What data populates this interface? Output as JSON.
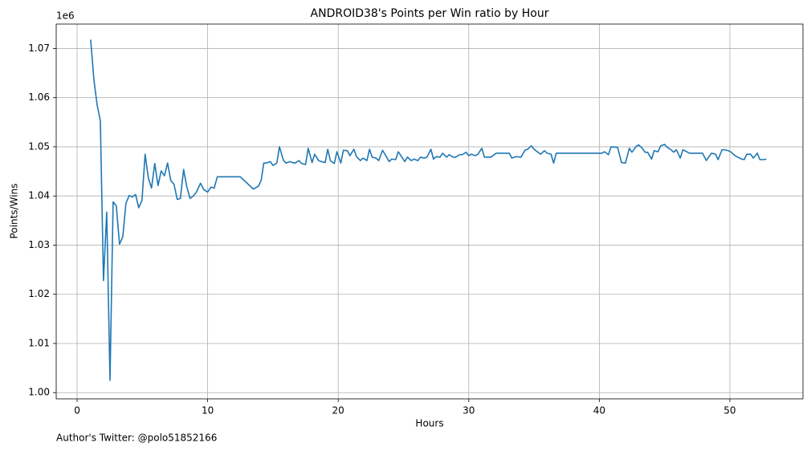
{
  "chart_data": {
    "type": "line",
    "title": "ANDROID38's Points per Win ratio by Hour",
    "x_label": "Hours",
    "y_label": "Points/Wins",
    "y_offset_label": "1e6",
    "footer": "Author's Twitter: @polo51852166",
    "color": "#1f77b4",
    "grid": true,
    "xlim": [
      -1.6,
      55.6
    ],
    "xticks": [
      0,
      10,
      20,
      30,
      40,
      50
    ],
    "ylim": [
      998730,
      1074970
    ],
    "yticks": [
      {
        "value": 1000000,
        "label": "1.00"
      },
      {
        "value": 1010000,
        "label": "1.01"
      },
      {
        "value": 1020000,
        "label": "1.02"
      },
      {
        "value": 1030000,
        "label": "1.03"
      },
      {
        "value": 1040000,
        "label": "1.04"
      },
      {
        "value": 1050000,
        "label": "1.05"
      },
      {
        "value": 1060000,
        "label": "1.06"
      },
      {
        "value": 1070000,
        "label": "1.07"
      }
    ],
    "x": [
      1.04,
      1.29,
      1.53,
      1.78,
      2.02,
      2.27,
      2.52,
      2.76,
      3.0,
      3.25,
      3.5,
      3.74,
      3.99,
      4.23,
      4.48,
      4.72,
      4.97,
      5.21,
      5.46,
      5.7,
      5.95,
      6.2,
      6.44,
      6.69,
      6.93,
      7.18,
      7.42,
      7.67,
      7.91,
      8.16,
      8.4,
      8.65,
      8.9,
      9.14,
      9.45,
      9.7,
      10.0,
      10.25,
      10.5,
      10.74,
      12.5,
      13.5,
      13.9,
      14.1,
      14.3,
      14.5,
      14.8,
      15.0,
      15.3,
      15.5,
      15.8,
      16.0,
      16.3,
      16.5,
      16.7,
      17.0,
      17.2,
      17.5,
      17.7,
      18.0,
      18.2,
      18.5,
      18.7,
      19.0,
      19.2,
      19.4,
      19.7,
      19.9,
      20.2,
      20.4,
      20.7,
      20.9,
      21.2,
      21.4,
      21.7,
      21.9,
      22.2,
      22.4,
      22.6,
      22.9,
      23.1,
      23.4,
      23.6,
      23.9,
      24.1,
      24.4,
      24.6,
      24.8,
      25.1,
      25.3,
      25.6,
      25.8,
      26.1,
      26.3,
      26.6,
      26.8,
      27.1,
      27.3,
      27.5,
      27.8,
      28.0,
      28.3,
      28.5,
      28.8,
      29.0,
      29.3,
      29.5,
      29.8,
      30.0,
      30.2,
      30.5,
      30.7,
      31.0,
      31.2,
      31.7,
      32.1,
      33.1,
      33.3,
      33.6,
      34.0,
      34.3,
      34.5,
      34.8,
      35.0,
      35.3,
      35.5,
      35.8,
      36.0,
      36.3,
      36.5,
      36.7,
      40.2,
      40.4,
      40.7,
      40.9,
      41.4,
      41.7,
      42.0,
      42.3,
      42.5,
      42.8,
      43.0,
      43.3,
      43.5,
      43.7,
      44.0,
      44.2,
      44.5,
      44.7,
      45.0,
      45.2,
      45.5,
      45.7,
      45.9,
      46.2,
      46.4,
      46.7,
      46.9,
      47.9,
      48.2,
      48.4,
      48.6,
      48.9,
      49.1,
      49.4,
      49.6,
      49.9,
      50.1,
      50.4,
      50.6,
      50.9,
      51.1,
      51.3,
      51.6,
      51.8,
      52.1,
      52.3,
      52.6,
      52.8
    ],
    "values": [
      1071800,
      1063600,
      1058600,
      1055300,
      1022800,
      1036700,
      1002500,
      1038800,
      1038000,
      1030200,
      1031700,
      1038500,
      1040100,
      1039800,
      1040300,
      1037600,
      1039100,
      1048500,
      1043600,
      1041600,
      1046600,
      1042100,
      1045100,
      1044100,
      1046700,
      1043100,
      1042400,
      1039300,
      1039500,
      1045400,
      1041900,
      1039500,
      1040000,
      1040800,
      1042600,
      1041300,
      1040800,
      1041800,
      1041600,
      1043900,
      1043900,
      1041400,
      1042000,
      1043200,
      1046700,
      1046700,
      1047000,
      1046200,
      1046700,
      1050000,
      1047300,
      1046700,
      1047000,
      1046800,
      1046700,
      1047200,
      1046600,
      1046400,
      1049700,
      1046800,
      1048500,
      1047200,
      1047000,
      1046800,
      1049500,
      1047200,
      1046600,
      1049000,
      1046700,
      1049300,
      1049200,
      1048200,
      1049500,
      1048000,
      1047200,
      1047700,
      1047200,
      1049500,
      1047900,
      1047700,
      1047200,
      1049300,
      1048400,
      1047000,
      1047500,
      1047400,
      1049000,
      1048200,
      1047000,
      1047900,
      1047200,
      1047500,
      1047200,
      1047900,
      1047700,
      1047900,
      1049500,
      1047500,
      1048000,
      1047900,
      1048700,
      1047900,
      1048400,
      1047900,
      1047900,
      1048400,
      1048400,
      1048900,
      1048200,
      1048500,
      1048200,
      1048500,
      1049700,
      1047900,
      1047900,
      1048700,
      1048700,
      1047700,
      1048000,
      1047900,
      1049300,
      1049500,
      1050200,
      1049500,
      1048900,
      1048500,
      1049200,
      1048700,
      1048500,
      1046700,
      1048700,
      1048700,
      1049000,
      1048400,
      1050000,
      1049900,
      1046800,
      1046700,
      1049700,
      1048900,
      1050000,
      1050400,
      1049700,
      1048900,
      1048900,
      1047500,
      1049200,
      1049000,
      1050200,
      1050500,
      1049900,
      1049400,
      1048900,
      1049400,
      1047700,
      1049400,
      1049000,
      1048700,
      1048700,
      1047200,
      1048000,
      1048700,
      1048500,
      1047400,
      1049400,
      1049400,
      1049200,
      1048900,
      1048200,
      1047900,
      1047500,
      1047400,
      1048500,
      1048500,
      1047700,
      1048700,
      1047400,
      1047400,
      1047500
    ]
  }
}
